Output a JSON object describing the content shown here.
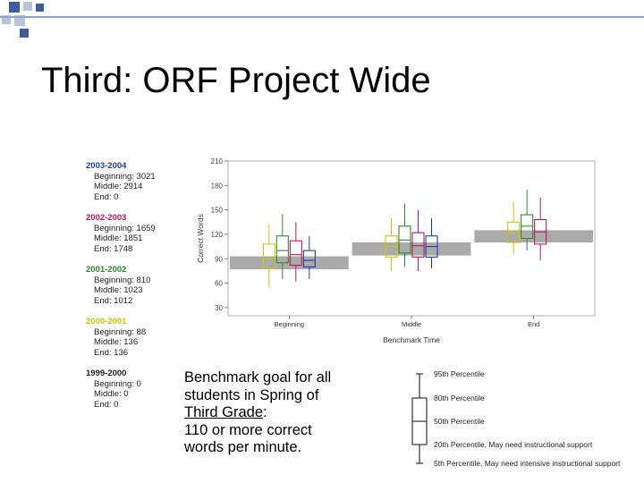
{
  "slide": {
    "title": "Third:  ORF Project Wide"
  },
  "legend": [
    {
      "year": "2003-2004",
      "color": "#1d3fae",
      "lines": [
        "Beginning: 3021",
        "Middle: 2914",
        "End: 0"
      ]
    },
    {
      "year": "2002-2003",
      "color": "#c2185b",
      "lines": [
        "Beginning: 1659",
        "Middle: 1851",
        "End: 1748"
      ]
    },
    {
      "year": "2001-2002",
      "color": "#2e8b2e",
      "lines": [
        "Beginning: 810",
        "Middle: 1023",
        "End: 1012"
      ]
    },
    {
      "year": "2000-2001",
      "color": "#c8c800",
      "lines": [
        "Beginning: 88",
        "Middle: 136",
        "End: 136"
      ]
    },
    {
      "year": "1999-2000",
      "color": "#222222",
      "lines": [
        "Beginning: 0",
        "Middle: 0",
        "End: 0"
      ]
    }
  ],
  "benchmark_note": {
    "line1": "Benchmark goal for all",
    "line2": "students in Spring of",
    "line3": "Third Grade",
    "line3_suffix": ":",
    "line4": "110 or more correct",
    "line5": "words per minute."
  },
  "percentile_key": {
    "labels": [
      "95th Percentile",
      "80th Percentile",
      "50th Percentile",
      "20th Percentile, May need instructional support",
      "5th Percentile, May need intensive instructional support"
    ]
  },
  "colors": {
    "benchmark_band": "#aaaaaa",
    "deco_square_dark": "#3e5c9a",
    "deco_square_light": "#b7c4dc"
  },
  "chart_data": {
    "type": "boxplot",
    "title": "",
    "xlabel": "Benchmark Time",
    "ylabel": "Correct Words",
    "ylim": [
      20,
      210
    ],
    "yticks": [
      30,
      60,
      90,
      120,
      150,
      180,
      210
    ],
    "categories": [
      "Beginning",
      "Middle",
      "End"
    ],
    "benchmark_band": [
      {
        "category": "Beginning",
        "low": 77,
        "high": 93
      },
      {
        "category": "Middle",
        "low": 94,
        "high": 110
      },
      {
        "category": "End",
        "low": 110,
        "high": 125
      }
    ],
    "series": [
      {
        "name": "2000-2001",
        "color": "#c8c800",
        "boxes": [
          {
            "p5": 55,
            "p20": 78,
            "p50": 90,
            "p80": 108,
            "p95": 132
          },
          {
            "p5": 75,
            "p20": 92,
            "p50": 105,
            "p80": 118,
            "p95": 140
          },
          {
            "p5": 95,
            "p20": 110,
            "p50": 122,
            "p80": 135,
            "p95": 160
          }
        ]
      },
      {
        "name": "2001-2002",
        "color": "#2e8b2e",
        "boxes": [
          {
            "p5": 65,
            "p20": 85,
            "p50": 100,
            "p80": 118,
            "p95": 145
          },
          {
            "p5": 80,
            "p20": 97,
            "p50": 113,
            "p80": 130,
            "p95": 158
          },
          {
            "p5": 100,
            "p20": 115,
            "p50": 130,
            "p80": 144,
            "p95": 175
          }
        ]
      },
      {
        "name": "2002-2003",
        "color": "#c2185b",
        "boxes": [
          {
            "p5": 62,
            "p20": 82,
            "p50": 95,
            "p80": 112,
            "p95": 135
          },
          {
            "p5": 75,
            "p20": 92,
            "p50": 106,
            "p80": 122,
            "p95": 150
          },
          {
            "p5": 88,
            "p20": 108,
            "p50": 123,
            "p80": 138,
            "p95": 165
          }
        ]
      },
      {
        "name": "2003-2004",
        "color": "#1d3fae",
        "boxes": [
          {
            "p5": 65,
            "p20": 80,
            "p50": 88,
            "p80": 100,
            "p95": 118
          },
          {
            "p5": 78,
            "p20": 92,
            "p50": 105,
            "p80": 118,
            "p95": 140
          },
          null
        ]
      }
    ]
  }
}
